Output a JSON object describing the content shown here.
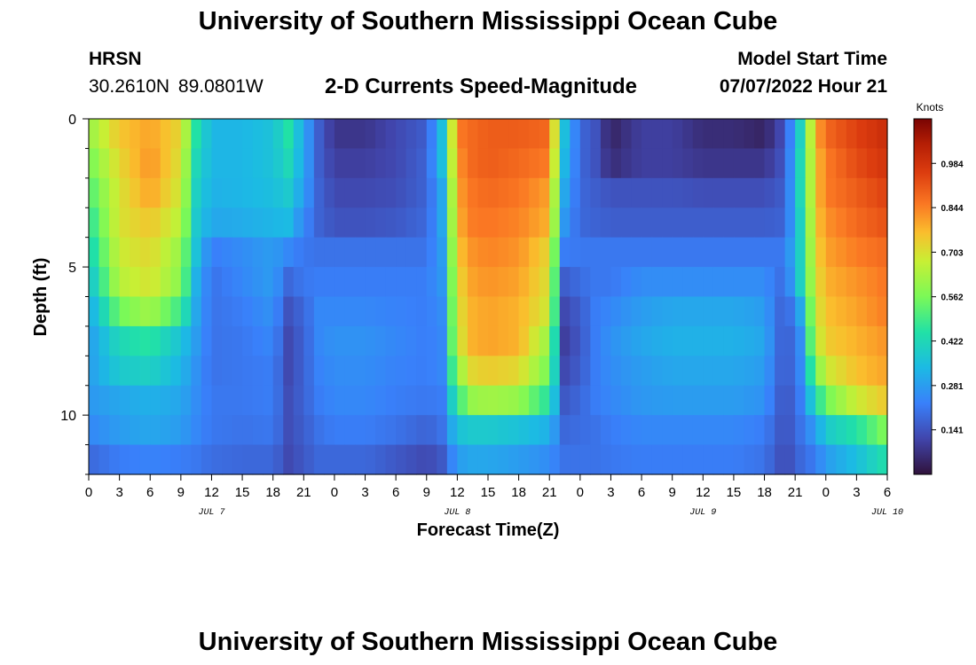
{
  "header": {
    "title": "University of Southern Mississippi Ocean Cube",
    "station": "HRSN",
    "coords": "30.2610N  89.0801W",
    "subtitle": "2-D Currents Speed-Magnitude",
    "model_start_label": "Model Start Time",
    "model_start_value": "07/07/2022 Hour 21"
  },
  "footer": {
    "title": "University of Southern Mississippi Ocean Cube"
  },
  "chart_data": {
    "type": "heatmap",
    "title": "2-D Currents Speed-Magnitude",
    "xlabel": "Forecast Time(Z)",
    "ylabel": "Depth (ft)",
    "x_tick_labels": [
      "0",
      "3",
      "6",
      "9",
      "12",
      "15",
      "18",
      "21",
      "0",
      "3",
      "6",
      "9",
      "12",
      "15",
      "18",
      "21",
      "0",
      "3",
      "6",
      "9",
      "12",
      "15",
      "18",
      "21",
      "0",
      "3",
      "6"
    ],
    "date_labels": [
      {
        "label": "JUL 7",
        "hour": 12
      },
      {
        "label": "JUL 8",
        "hour": 36
      },
      {
        "label": "JUL 9",
        "hour": 60
      },
      {
        "label": "JUL 10",
        "hour": 78
      }
    ],
    "x_range_hours": [
      0,
      78
    ],
    "y_range_ft": [
      0,
      12
    ],
    "y_ticks": [
      0,
      5,
      10
    ],
    "colorbar": {
      "label": "Knots",
      "range": [
        0,
        1.125
      ],
      "ticks": [
        "0.141",
        "0.281",
        "0.422",
        "0.562",
        "0.703",
        "0.844",
        "0.984"
      ]
    },
    "depth_layers_ft": [
      0.5,
      1.5,
      2.5,
      3.5,
      4.5,
      5.5,
      6.5,
      7.5,
      8.5,
      9.5,
      10.5,
      11.5
    ],
    "time_knots_hours": [
      0,
      3,
      6,
      9,
      10.5,
      12,
      15,
      18,
      19.5,
      21,
      22.5,
      24,
      27,
      30,
      33,
      34.5,
      36,
      37.5,
      39,
      42,
      45,
      46.5,
      48,
      49.5,
      51,
      54,
      57,
      60,
      63,
      66,
      68,
      69.5,
      71,
      72,
      75,
      78
    ],
    "speed_knots": [
      [
        0.6,
        0.75,
        0.8,
        0.72,
        0.45,
        0.33,
        0.33,
        0.36,
        0.45,
        0.3,
        0.16,
        0.08,
        0.08,
        0.12,
        0.16,
        0.35,
        0.85,
        0.88,
        0.9,
        0.9,
        0.88,
        0.35,
        0.18,
        0.14,
        0.04,
        0.1,
        0.1,
        0.06,
        0.06,
        0.04,
        0.14,
        0.4,
        0.78,
        0.88,
        0.95,
        1.0
      ],
      [
        0.55,
        0.72,
        0.82,
        0.7,
        0.42,
        0.33,
        0.33,
        0.36,
        0.42,
        0.3,
        0.16,
        0.1,
        0.1,
        0.12,
        0.17,
        0.35,
        0.82,
        0.88,
        0.9,
        0.88,
        0.85,
        0.33,
        0.18,
        0.14,
        0.06,
        0.1,
        0.1,
        0.08,
        0.08,
        0.08,
        0.15,
        0.42,
        0.75,
        0.85,
        0.93,
        0.98
      ],
      [
        0.5,
        0.7,
        0.8,
        0.68,
        0.4,
        0.32,
        0.33,
        0.35,
        0.38,
        0.28,
        0.17,
        0.12,
        0.12,
        0.13,
        0.17,
        0.3,
        0.8,
        0.86,
        0.88,
        0.86,
        0.8,
        0.3,
        0.18,
        0.16,
        0.14,
        0.14,
        0.14,
        0.13,
        0.13,
        0.13,
        0.16,
        0.42,
        0.75,
        0.85,
        0.9,
        0.95
      ],
      [
        0.45,
        0.7,
        0.75,
        0.65,
        0.38,
        0.3,
        0.31,
        0.33,
        0.34,
        0.24,
        0.17,
        0.14,
        0.14,
        0.15,
        0.18,
        0.3,
        0.78,
        0.85,
        0.86,
        0.84,
        0.78,
        0.27,
        0.18,
        0.17,
        0.16,
        0.16,
        0.16,
        0.16,
        0.16,
        0.16,
        0.17,
        0.4,
        0.74,
        0.82,
        0.88,
        0.92
      ],
      [
        0.4,
        0.68,
        0.72,
        0.6,
        0.36,
        0.22,
        0.25,
        0.28,
        0.24,
        0.21,
        0.2,
        0.2,
        0.2,
        0.2,
        0.2,
        0.28,
        0.75,
        0.82,
        0.84,
        0.82,
        0.72,
        0.22,
        0.21,
        0.21,
        0.21,
        0.21,
        0.21,
        0.21,
        0.21,
        0.21,
        0.21,
        0.4,
        0.72,
        0.8,
        0.85,
        0.88
      ],
      [
        0.35,
        0.65,
        0.7,
        0.58,
        0.32,
        0.2,
        0.24,
        0.28,
        0.18,
        0.21,
        0.22,
        0.22,
        0.22,
        0.22,
        0.22,
        0.27,
        0.72,
        0.8,
        0.82,
        0.8,
        0.7,
        0.16,
        0.19,
        0.21,
        0.21,
        0.25,
        0.25,
        0.25,
        0.25,
        0.25,
        0.18,
        0.4,
        0.7,
        0.78,
        0.82,
        0.86
      ],
      [
        0.3,
        0.55,
        0.62,
        0.48,
        0.3,
        0.2,
        0.22,
        0.26,
        0.14,
        0.18,
        0.24,
        0.24,
        0.24,
        0.23,
        0.22,
        0.25,
        0.7,
        0.78,
        0.8,
        0.78,
        0.68,
        0.12,
        0.16,
        0.22,
        0.24,
        0.28,
        0.3,
        0.3,
        0.3,
        0.28,
        0.15,
        0.3,
        0.68,
        0.76,
        0.8,
        0.85
      ],
      [
        0.28,
        0.42,
        0.46,
        0.36,
        0.28,
        0.2,
        0.21,
        0.24,
        0.12,
        0.17,
        0.24,
        0.26,
        0.26,
        0.24,
        0.22,
        0.24,
        0.68,
        0.78,
        0.8,
        0.78,
        0.6,
        0.1,
        0.15,
        0.22,
        0.26,
        0.3,
        0.32,
        0.32,
        0.32,
        0.3,
        0.14,
        0.25,
        0.65,
        0.74,
        0.78,
        0.82
      ],
      [
        0.28,
        0.38,
        0.4,
        0.33,
        0.26,
        0.2,
        0.21,
        0.22,
        0.12,
        0.17,
        0.23,
        0.25,
        0.25,
        0.23,
        0.22,
        0.24,
        0.6,
        0.72,
        0.74,
        0.72,
        0.55,
        0.12,
        0.16,
        0.22,
        0.25,
        0.28,
        0.3,
        0.3,
        0.3,
        0.28,
        0.14,
        0.24,
        0.55,
        0.68,
        0.76,
        0.8
      ],
      [
        0.27,
        0.3,
        0.32,
        0.3,
        0.25,
        0.21,
        0.21,
        0.22,
        0.13,
        0.17,
        0.22,
        0.24,
        0.24,
        0.22,
        0.21,
        0.22,
        0.48,
        0.6,
        0.62,
        0.6,
        0.45,
        0.15,
        0.18,
        0.22,
        0.24,
        0.27,
        0.28,
        0.28,
        0.28,
        0.26,
        0.13,
        0.22,
        0.42,
        0.55,
        0.68,
        0.75
      ],
      [
        0.24,
        0.28,
        0.3,
        0.28,
        0.24,
        0.21,
        0.2,
        0.21,
        0.13,
        0.16,
        0.2,
        0.22,
        0.22,
        0.2,
        0.17,
        0.2,
        0.36,
        0.38,
        0.38,
        0.36,
        0.32,
        0.18,
        0.19,
        0.2,
        0.22,
        0.24,
        0.24,
        0.24,
        0.24,
        0.22,
        0.13,
        0.2,
        0.28,
        0.38,
        0.45,
        0.58
      ],
      [
        0.18,
        0.22,
        0.23,
        0.22,
        0.21,
        0.19,
        0.18,
        0.18,
        0.12,
        0.15,
        0.18,
        0.18,
        0.18,
        0.15,
        0.12,
        0.15,
        0.28,
        0.3,
        0.3,
        0.28,
        0.25,
        0.2,
        0.2,
        0.2,
        0.21,
        0.22,
        0.22,
        0.22,
        0.22,
        0.2,
        0.12,
        0.18,
        0.22,
        0.28,
        0.35,
        0.45
      ]
    ]
  }
}
